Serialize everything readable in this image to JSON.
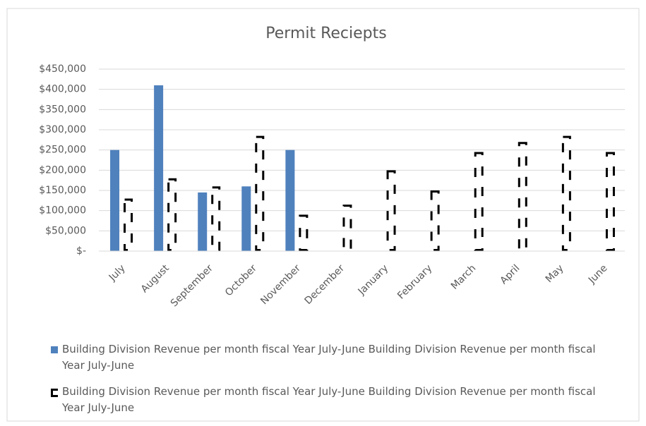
{
  "chart_data": {
    "type": "bar",
    "title": "Permit Reciepts",
    "categories": [
      "July",
      "August",
      "September",
      "October",
      "November",
      "December",
      "January",
      "February",
      "March",
      "April",
      "May",
      "June"
    ],
    "series": [
      {
        "name": "Building Division Revenue  per month  fiscal Year July-June Building Division Revenue  per month  fiscal Year July-June",
        "color": "#4f81bd",
        "style": "solid",
        "values": [
          250000,
          410000,
          145000,
          160000,
          250000,
          null,
          null,
          null,
          null,
          null,
          null,
          null
        ]
      },
      {
        "name": "Building Division Revenue  per month  fiscal Year July-June Building Division Revenue  per month  fiscal Year July-June",
        "color": "#000000",
        "style": "dashed",
        "values": [
          130000,
          180000,
          160000,
          285000,
          90000,
          115000,
          200000,
          150000,
          245000,
          270000,
          285000,
          245000
        ]
      }
    ],
    "ylim": [
      0,
      450000
    ],
    "yticks": [
      {
        "value": 0,
        "label": "$-"
      },
      {
        "value": 50000,
        "label": "$50,000"
      },
      {
        "value": 100000,
        "label": "$100,000"
      },
      {
        "value": 150000,
        "label": "$150,000"
      },
      {
        "value": 200000,
        "label": "$200,000"
      },
      {
        "value": 250000,
        "label": "$250,000"
      },
      {
        "value": 300000,
        "label": "$300,000"
      },
      {
        "value": 350000,
        "label": "$350,000"
      },
      {
        "value": 400000,
        "label": "$400,000"
      },
      {
        "value": 450000,
        "label": "$450,000"
      }
    ],
    "grid": true,
    "legend": "bottom"
  }
}
